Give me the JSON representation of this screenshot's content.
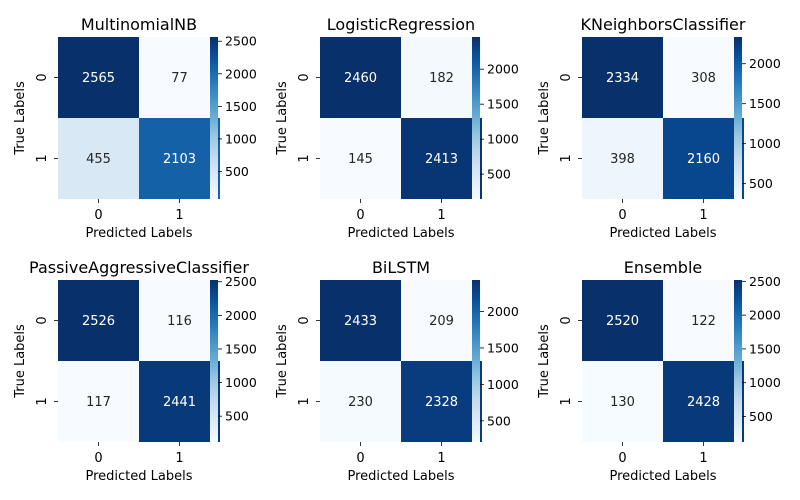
{
  "chart_data": [
    {
      "type": "heatmap",
      "title": "MultinomialNB",
      "xlabel": "Predicted Labels",
      "ylabel": "True Labels",
      "x_ticks": [
        "0",
        "1"
      ],
      "y_ticks": [
        "0",
        "1"
      ],
      "matrix": [
        [
          2565,
          77
        ],
        [
          455,
          2103
        ]
      ],
      "colorbar_ticks": [
        "500",
        "1000",
        "1500",
        "2000",
        "2500"
      ],
      "colormap": "Blues"
    },
    {
      "type": "heatmap",
      "title": "LogisticRegression",
      "xlabel": "Predicted Labels",
      "ylabel": "True Labels",
      "x_ticks": [
        "0",
        "1"
      ],
      "y_ticks": [
        "0",
        "1"
      ],
      "matrix": [
        [
          2460,
          182
        ],
        [
          145,
          2413
        ]
      ],
      "colorbar_ticks": [
        "500",
        "1000",
        "1500",
        "2000"
      ],
      "colormap": "Blues"
    },
    {
      "type": "heatmap",
      "title": "KNeighborsClassifier",
      "xlabel": "Predicted Labels",
      "ylabel": "True Labels",
      "x_ticks": [
        "0",
        "1"
      ],
      "y_ticks": [
        "0",
        "1"
      ],
      "matrix": [
        [
          2334,
          308
        ],
        [
          398,
          2160
        ]
      ],
      "colorbar_ticks": [
        "500",
        "1000",
        "1500",
        "2000"
      ],
      "colormap": "Blues"
    },
    {
      "type": "heatmap",
      "title": "PassiveAggressiveClassifier",
      "xlabel": "Predicted Labels",
      "ylabel": "True Labels",
      "x_ticks": [
        "0",
        "1"
      ],
      "y_ticks": [
        "0",
        "1"
      ],
      "matrix": [
        [
          2526,
          116
        ],
        [
          117,
          2441
        ]
      ],
      "colorbar_ticks": [
        "500",
        "1000",
        "1500",
        "2000",
        "2500"
      ],
      "colormap": "Blues"
    },
    {
      "type": "heatmap",
      "title": "BiLSTM",
      "xlabel": "Predicted Labels",
      "ylabel": "True Labels",
      "x_ticks": [
        "0",
        "1"
      ],
      "y_ticks": [
        "0",
        "1"
      ],
      "matrix": [
        [
          2433,
          209
        ],
        [
          230,
          2328
        ]
      ],
      "colorbar_ticks": [
        "500",
        "1000",
        "1500",
        "2000"
      ],
      "colormap": "Blues"
    },
    {
      "type": "heatmap",
      "title": "Ensemble",
      "xlabel": "Predicted Labels",
      "ylabel": "True Labels",
      "x_ticks": [
        "0",
        "1"
      ],
      "y_ticks": [
        "0",
        "1"
      ],
      "matrix": [
        [
          2520,
          122
        ],
        [
          130,
          2428
        ]
      ],
      "colorbar_ticks": [
        "500",
        "1000",
        "1500",
        "2000",
        "2500"
      ],
      "colormap": "Blues"
    }
  ]
}
